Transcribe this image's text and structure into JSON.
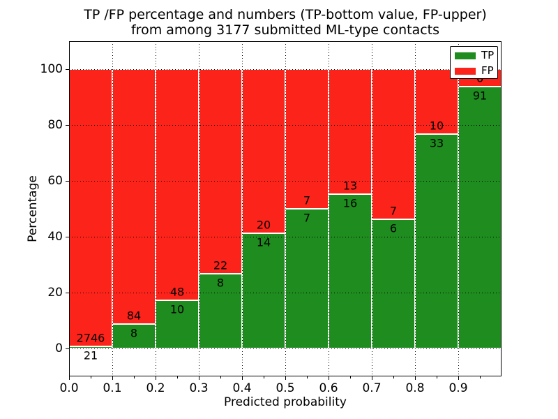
{
  "chart_data": {
    "type": "bar",
    "subtype": "stacked-100-percent",
    "title_lines": [
      "TP /FP percentage and numbers (TP-bottom value, FP-upper)",
      "from among 3177 submitted ML-type contacts"
    ],
    "xlabel": "Predicted probability",
    "ylabel": "Percentage",
    "x_tick_labels": [
      "0.0",
      "0.1",
      "0.2",
      "0.3",
      "0.4",
      "0.5",
      "0.6",
      "0.7",
      "0.8",
      "0.9"
    ],
    "y_ticks": [
      0,
      20,
      40,
      60,
      80,
      100
    ],
    "xlim": [
      0.0,
      1.0
    ],
    "ylim": [
      -10,
      110
    ],
    "bin_width": 0.1,
    "grid_style": "dotted",
    "bar_label_note": "TP count shown below segment boundary, FP count above it",
    "series": [
      {
        "name": "TP",
        "color": "#1e8c1e",
        "values": [
          21,
          8,
          10,
          8,
          14,
          7,
          16,
          6,
          33,
          91
        ]
      },
      {
        "name": "FP",
        "color": "#fb231a",
        "values": [
          2746,
          84,
          48,
          22,
          20,
          7,
          13,
          7,
          10,
          6
        ]
      }
    ],
    "legend": {
      "position": "upper right",
      "entries": [
        {
          "label": "TP",
          "color": "#1e8c1e"
        },
        {
          "label": "FP",
          "color": "#fb231a"
        }
      ]
    }
  }
}
